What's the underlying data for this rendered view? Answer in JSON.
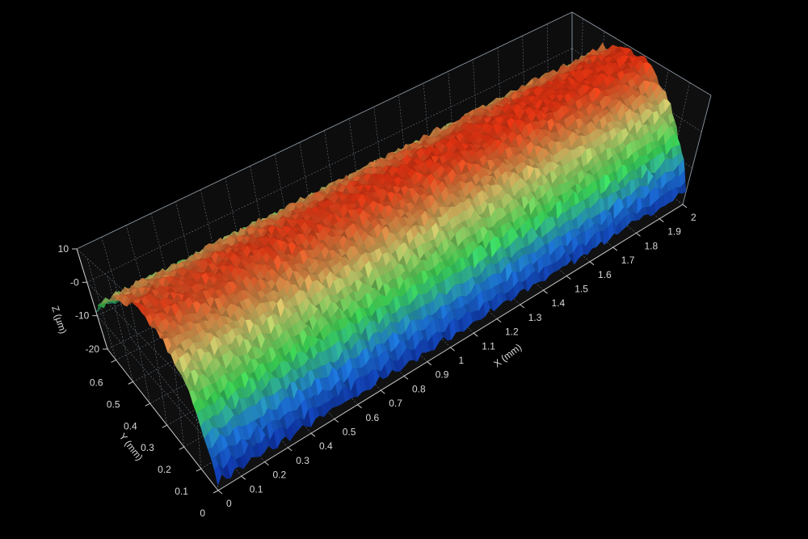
{
  "chart_data": {
    "type": "surface",
    "title": "",
    "xlabel": "X (mm)",
    "ylabel": "Y (mm)",
    "zlabel": "Z (µm)",
    "xlim": [
      0,
      2
    ],
    "ylim": [
      0,
      0.65
    ],
    "zlim": [
      -20,
      10
    ],
    "x_ticks": [
      "0",
      "0.1",
      "0.2",
      "0.3",
      "0.4",
      "0.5",
      "0.6",
      "0.7",
      "0.8",
      "0.9",
      "1",
      "1.1",
      "1.2",
      "1.3",
      "1.4",
      "1.5",
      "1.6",
      "1.7",
      "1.8",
      "1.9",
      "2"
    ],
    "y_ticks": [
      "0",
      "0.1",
      "0.2",
      "0.3",
      "0.4",
      "0.5",
      "0.6"
    ],
    "z_ticks": [
      "-20",
      "-10",
      "-0",
      "10"
    ],
    "grid": true,
    "colormap": [
      "#0a1e9c",
      "#1e7ae0",
      "#3ee05a",
      "#d8d070",
      "#ff3a14"
    ],
    "surface_profile_across_y": {
      "y": [
        0,
        0.1,
        0.2,
        0.3,
        0.36,
        0.4,
        0.5,
        0.6,
        0.65
      ],
      "z": [
        -17.9,
        -5.5,
        2.9,
        7.3,
        8,
        7.7,
        4.1,
        -3.5,
        -8.8
      ]
    },
    "background": "#000000",
    "wall_color": "#111111"
  }
}
